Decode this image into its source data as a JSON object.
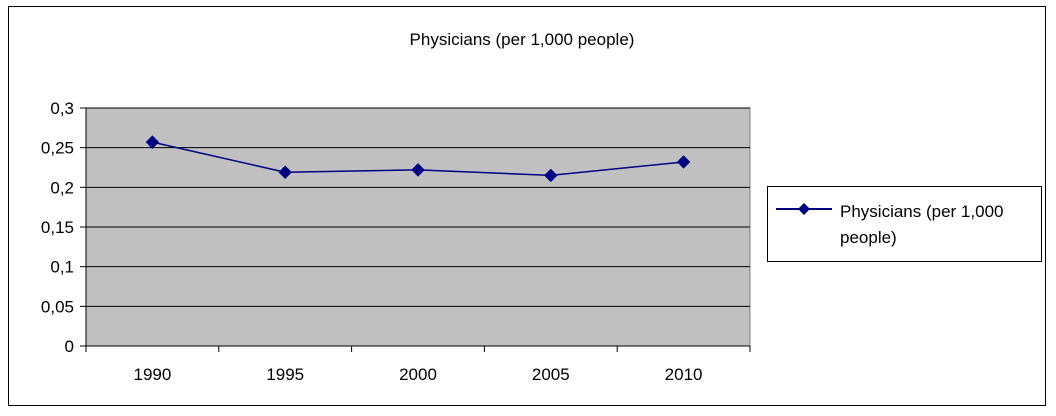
{
  "chart_data": {
    "type": "line",
    "title": "Physicians (per 1,000 people)",
    "categories": [
      "1990",
      "1995",
      "2000",
      "2005",
      "2010"
    ],
    "series": [
      {
        "name": "Physicians (per 1,000 people)",
        "values": [
          0.257,
          0.219,
          0.222,
          0.215,
          0.232
        ],
        "color": "#000080"
      }
    ],
    "yticks": [
      "0",
      "0,05",
      "0,1",
      "0,15",
      "0,2",
      "0,25",
      "0,3"
    ],
    "ylim": [
      0,
      0.3
    ],
    "grid": true,
    "plot_background": "#c0c0c0",
    "legend_position": "right"
  }
}
